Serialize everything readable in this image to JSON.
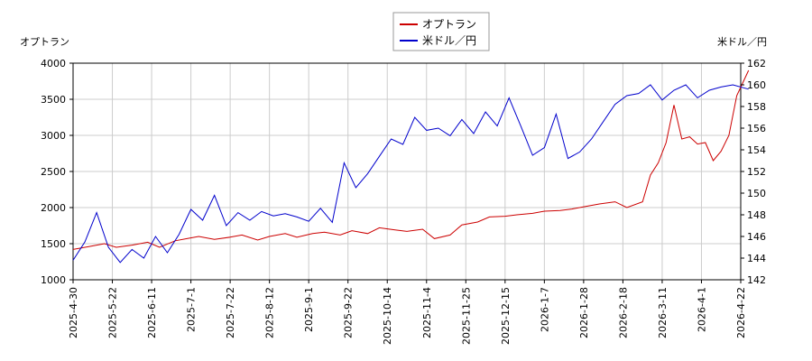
{
  "chart_data": {
    "type": "line",
    "legend": {
      "placement": "top-center",
      "entries": [
        "オプトラン",
        "米ドル／円"
      ]
    },
    "left_axis": {
      "label": "オプトラン",
      "ylim": [
        1000,
        4000
      ],
      "ticks": [
        "1000",
        "1500",
        "2000",
        "2500",
        "3000",
        "3500",
        "4000"
      ]
    },
    "right_axis": {
      "label": "米ドル／円",
      "ylim": [
        142,
        162
      ],
      "ticks": [
        "142",
        "144",
        "146",
        "148",
        "150",
        "152",
        "154",
        "156",
        "158",
        "160",
        "162"
      ]
    },
    "x_axis": {
      "ticks": [
        "2025-4-30",
        "2025-5-22",
        "2025-6-11",
        "2025-7-1",
        "2025-7-22",
        "2025-8-12",
        "2025-9-1",
        "2025-9-22",
        "2025-10-14",
        "2025-11-4",
        "2025-11-25",
        "2025-12-15",
        "2026-1-7",
        "2026-1-28",
        "2026-2-18",
        "2026-3-11",
        "2026-4-1",
        "2026-4-22"
      ]
    },
    "grid": true,
    "colors": {
      "optorun": "#cc0000",
      "usdjpy": "#0000cc",
      "grid": "#cccccc"
    },
    "series": [
      {
        "name": "オプトラン",
        "axis": "left",
        "x": [
          0,
          0.4,
          0.8,
          1.1,
          1.5,
          1.9,
          2.2,
          2.6,
          2.9,
          3.2,
          3.6,
          4.0,
          4.3,
          4.7,
          5.0,
          5.4,
          5.7,
          6.1,
          6.4,
          6.8,
          7.1,
          7.5,
          7.8,
          8.2,
          8.5,
          8.9,
          9.2,
          9.6,
          9.9,
          10.3,
          10.6,
          11.0,
          11.3,
          11.7,
          12.0,
          12.4,
          12.7,
          13.1,
          13.4,
          13.8,
          14.1,
          14.5,
          14.7,
          14.9,
          15.1,
          15.3,
          15.5,
          15.7,
          15.9,
          16.1,
          16.3,
          16.5,
          16.7,
          16.9,
          17.2
        ],
        "values": [
          1420,
          1460,
          1500,
          1450,
          1480,
          1520,
          1450,
          1540,
          1570,
          1600,
          1560,
          1590,
          1620,
          1550,
          1600,
          1640,
          1590,
          1640,
          1660,
          1620,
          1680,
          1640,
          1720,
          1690,
          1670,
          1700,
          1570,
          1620,
          1760,
          1800,
          1870,
          1880,
          1900,
          1920,
          1950,
          1960,
          1980,
          2020,
          2050,
          2080,
          2000,
          2080,
          2450,
          2620,
          2900,
          3420,
          2950,
          2980,
          2880,
          2900,
          2650,
          2780,
          3000,
          3550,
          3900
        ]
      },
      {
        "name": "米ドル／円",
        "axis": "right",
        "x": [
          0,
          0.3,
          0.6,
          0.9,
          1.2,
          1.5,
          1.8,
          2.1,
          2.4,
          2.7,
          3.0,
          3.3,
          3.6,
          3.9,
          4.2,
          4.5,
          4.8,
          5.1,
          5.4,
          5.7,
          6.0,
          6.3,
          6.6,
          6.9,
          7.2,
          7.5,
          7.8,
          8.1,
          8.4,
          8.7,
          9.0,
          9.3,
          9.6,
          9.9,
          10.2,
          10.5,
          10.8,
          11.1,
          11.4,
          11.7,
          12.0,
          12.3,
          12.6,
          12.9,
          13.2,
          13.5,
          13.8,
          14.1,
          14.4,
          14.7,
          15.0,
          15.3,
          15.6,
          15.9,
          16.2,
          16.5,
          16.8,
          17.2
        ],
        "values": [
          143.8,
          145.5,
          148.2,
          145.0,
          143.6,
          144.8,
          144.0,
          146.0,
          144.5,
          146.2,
          148.5,
          147.5,
          149.8,
          147.0,
          148.2,
          147.5,
          148.3,
          147.9,
          148.1,
          147.8,
          147.4,
          148.6,
          147.3,
          152.8,
          150.5,
          151.8,
          153.4,
          155.0,
          154.5,
          157.0,
          155.8,
          156.0,
          155.3,
          156.8,
          155.5,
          157.5,
          156.2,
          158.8,
          156.2,
          153.5,
          154.2,
          157.3,
          153.2,
          153.8,
          155.0,
          156.6,
          158.2,
          159.0,
          159.2,
          160.0,
          158.6,
          159.5,
          160.0,
          158.8,
          159.5,
          159.8,
          160.0,
          159.6
        ]
      }
    ]
  }
}
